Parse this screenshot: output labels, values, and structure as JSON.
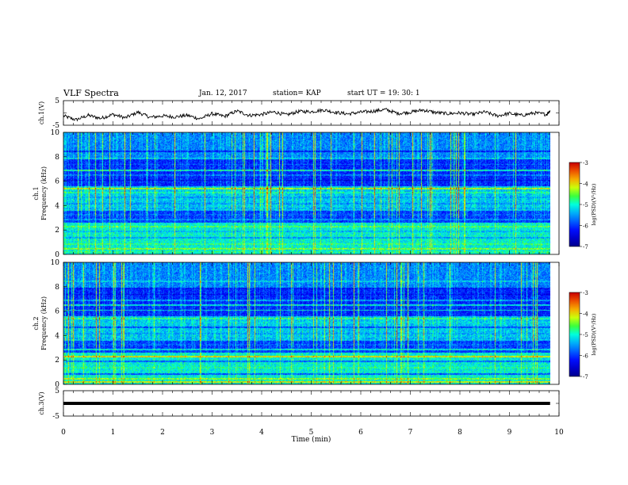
{
  "header": {
    "title": "VLF Spectra",
    "date": "Jan. 12, 2017",
    "station": "station= KAP",
    "start": "start  UT =   19: 30: 1"
  },
  "chart_data": [
    {
      "type": "line",
      "panel": "ch1-waveform",
      "ylabel": "ch.1(V)",
      "ylim": [
        -5,
        5
      ],
      "yticks": [
        "5",
        "-5"
      ],
      "xlim": [
        0,
        10
      ],
      "series": [
        {
          "x": [
            0,
            0.25,
            0.5,
            0.75,
            1,
            1.25,
            1.5,
            1.75,
            2,
            2.25,
            2.5,
            2.75,
            3,
            3.25,
            3.5,
            3.75,
            4,
            4.25,
            4.5,
            4.75,
            5,
            5.25,
            5.5,
            5.75,
            6,
            6.25,
            6.5,
            6.75,
            7,
            7.25,
            7.5,
            7.75,
            8,
            8.25,
            8.5,
            8.75,
            9,
            9.25,
            9.5,
            9.75,
            9.82
          ],
          "y": [
            -1.2,
            -2.8,
            -1.0,
            -2.2,
            -0.6,
            -2.0,
            0.3,
            -1.8,
            -1.2,
            -1.6,
            -1.0,
            -2.4,
            -0.3,
            -1.4,
            0.8,
            -1.0,
            -0.6,
            0.4,
            -0.8,
            0.6,
            0.5,
            1.2,
            0.2,
            -0.4,
            0.3,
            0.7,
            1.4,
            -0.2,
            0.3,
            1.2,
            0.2,
            -0.3,
            0.0,
            -0.6,
            0.4,
            -1.2,
            -0.2,
            -1.0,
            0.0,
            -0.6,
            1.0
          ]
        }
      ]
    },
    {
      "type": "heatmap",
      "panel": "ch1-spectrogram",
      "ylabel": "ch.1\nFrequency (kHz)",
      "xlim": [
        0,
        9.82
      ],
      "ylim": [
        0,
        10
      ],
      "yticks": [
        "0",
        "2",
        "4",
        "6",
        "8",
        "10"
      ],
      "colorbar": {
        "label": "log(PSD)(V²/Hz)",
        "range": [
          -7,
          -3
        ],
        "ticks": [
          "-3",
          "-4",
          "-5",
          "-6",
          "-7"
        ]
      }
    },
    {
      "type": "heatmap",
      "panel": "ch2-spectrogram",
      "ylabel": "ch.2\nFrequency (kHz)",
      "xlim": [
        0,
        9.82
      ],
      "ylim": [
        0,
        10
      ],
      "yticks": [
        "0",
        "2",
        "4",
        "6",
        "8",
        "10"
      ],
      "colorbar": {
        "label": "log(PSD)(V²/Hz)",
        "range": [
          -7,
          -3
        ],
        "ticks": [
          "-3",
          "-4",
          "-5",
          "-6",
          "-7"
        ]
      }
    },
    {
      "type": "line",
      "panel": "ch3-waveform",
      "ylabel": "ch.3(V)",
      "ylim": [
        -5,
        5
      ],
      "yticks": [
        "5",
        "-5"
      ],
      "xlim": [
        0,
        10
      ],
      "series": [
        {
          "x": [
            0,
            9.82
          ],
          "y": [
            0,
            0
          ]
        }
      ]
    }
  ],
  "xaxis": {
    "label": "Time (min)",
    "ticks": [
      "0",
      "1",
      "2",
      "3",
      "4",
      "5",
      "6",
      "7",
      "8",
      "9",
      "10"
    ]
  }
}
